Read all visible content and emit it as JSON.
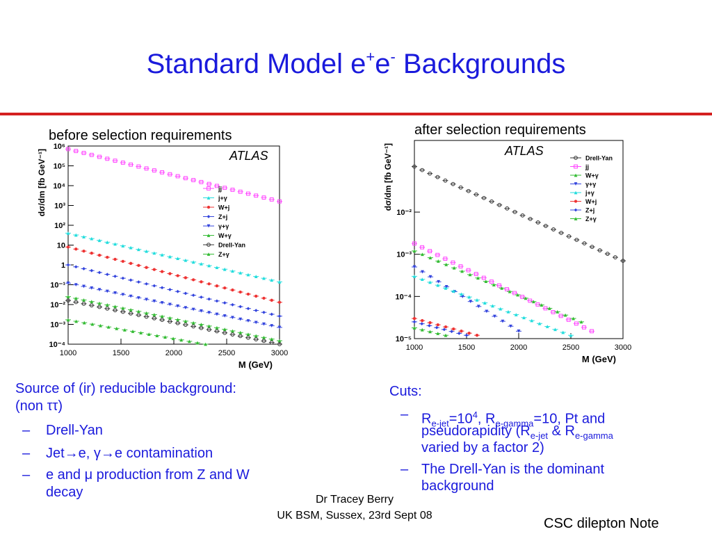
{
  "slide": {
    "title_pre": "Standard Model e",
    "title_sup1": "+",
    "title_mid": "e",
    "title_sup2": "-",
    "title_post": " Backgrounds"
  },
  "left_panel": {
    "caption": "before selection requirements",
    "atlas": "ATLAS"
  },
  "right_panel": {
    "caption": "after selection requirements",
    "atlas": "ATLAS"
  },
  "left_text": {
    "heading_line1": "Source of (ir) reducible background:",
    "heading_line2": "(non ττ)",
    "bullets": [
      "Drell-Yan",
      "Jet→e, γ→e contamination",
      "e and μ production from Z and W",
      "decay"
    ]
  },
  "right_text": {
    "heading": "Cuts:",
    "b1_r": "R",
    "b1_sub1": "e-jet",
    "b1_eq1": "=10",
    "b1_sup": "4",
    "b1_mid": ", R",
    "b1_sub2": "e-gamma",
    "b1_rest": "=10, Pt and",
    "b1_line2a": "pseudorapidity (R",
    "b1_sub3": "e-jet",
    "b1_line2b": " & R",
    "b1_sub4": "e-gamma",
    "b1_line3": "varied by a factor 2)",
    "b2_line1": "The Drell-Yan is the dominant",
    "b2_line2": "background"
  },
  "footer": {
    "line1": "Dr Tracey Berry",
    "line2": "UK BSM, Sussex, 23rd Sept 08"
  },
  "note": "CSC dilepton Note",
  "colors": {
    "jj": "#ff44ff",
    "jgamma": "#22dddd",
    "wj": "#ee3333",
    "zj": "#3344dd",
    "gammagamma": "#3344dd",
    "wgamma": "#33bb33",
    "dy": "#333333",
    "zgamma": "#33bb33"
  },
  "chart_data": [
    {
      "type": "scatter",
      "xlabel": "M (GeV)",
      "ylabel": "dσ/dm [fb GeV⁻¹]",
      "xlim": [
        1000,
        3000
      ],
      "ylim": [
        0.0001,
        1000000
      ],
      "log_y": true,
      "xticks": [
        1000,
        1500,
        2000,
        2500,
        3000
      ],
      "yticks": [
        "10⁻⁴",
        "10⁻³",
        "10⁻²",
        "10⁻¹",
        "1",
        "10",
        "10²",
        "10³",
        "10⁴",
        "10⁵",
        "10⁶"
      ],
      "legend_position": "top-right",
      "series": [
        {
          "name": "jj",
          "color": "#ff44ff",
          "marker": "square",
          "x": [
            1000,
            3000
          ],
          "y": [
            700000,
            1600
          ]
        },
        {
          "name": "j+γ",
          "color": "#22dddd",
          "marker": "triangle",
          "x": [
            1000,
            3000
          ],
          "y": [
            40,
            0.14
          ]
        },
        {
          "name": "W+j",
          "color": "#ee3333",
          "marker": "star",
          "x": [
            1000,
            3000
          ],
          "y": [
            8,
            0.013
          ]
        },
        {
          "name": "Z+j",
          "color": "#3344dd",
          "marker": "diamond",
          "x": [
            1000,
            3000
          ],
          "y": [
            1.0,
            0.0026
          ]
        },
        {
          "name": "γ+γ",
          "color": "#3344dd",
          "marker": "triangle-down",
          "x": [
            1000,
            3000
          ],
          "y": [
            0.12,
            0.0007
          ]
        },
        {
          "name": "W+γ",
          "color": "#33bb33",
          "marker": "triangle",
          "x": [
            1000,
            3000
          ],
          "y": [
            0.025,
            0.00015
          ]
        },
        {
          "name": "Drell-Yan",
          "color": "#333333",
          "marker": "circle",
          "x": [
            1000,
            3000
          ],
          "y": [
            0.016,
            0.0001
          ]
        },
        {
          "name": "Z+γ",
          "color": "#33bb33",
          "marker": "triangle",
          "x": [
            1000,
            2300
          ],
          "y": [
            0.0017,
            0.0001
          ]
        }
      ]
    },
    {
      "type": "scatter",
      "xlabel": "M (GeV)",
      "ylabel": "dσ/dm [fb GeV⁻¹]",
      "xlim": [
        1000,
        3000
      ],
      "ylim": [
        1e-06,
        0.05
      ],
      "log_y": true,
      "xticks": [
        1000,
        1500,
        2000,
        2500,
        3000
      ],
      "yticks": [
        "10⁻⁵",
        "10⁻⁴",
        "10⁻³",
        "10⁻²"
      ],
      "legend_position": "top-right",
      "series": [
        {
          "name": "Drell-Yan",
          "color": "#333333",
          "marker": "circle",
          "x": [
            1000,
            3000
          ],
          "y": [
            0.012,
            7e-05
          ]
        },
        {
          "name": "jj",
          "color": "#ff44ff",
          "marker": "square",
          "x": [
            1000,
            2700
          ],
          "y": [
            0.00018,
            1.5e-06
          ]
        },
        {
          "name": "W+γ",
          "color": "#33bb33",
          "marker": "triangle",
          "x": [
            1000,
            2600
          ],
          "y": [
            0.00012,
            2.5e-06
          ]
        },
        {
          "name": "γ+γ",
          "color": "#3344dd",
          "marker": "triangle-down",
          "x": [
            1000,
            2000
          ],
          "y": [
            5e-05,
            1.5e-06
          ]
        },
        {
          "name": "j+γ",
          "color": "#22dddd",
          "marker": "triangle",
          "x": [
            1000,
            2500
          ],
          "y": [
            3e-05,
            1.2e-06
          ]
        },
        {
          "name": "W+j",
          "color": "#ee3333",
          "marker": "star",
          "x": [
            1000,
            1600
          ],
          "y": [
            3e-06,
            1.2e-06
          ]
        },
        {
          "name": "Z+j",
          "color": "#3344dd",
          "marker": "diamond",
          "x": [
            1000,
            1500
          ],
          "y": [
            2.5e-06,
            1.2e-06
          ]
        },
        {
          "name": "Z+γ",
          "color": "#33bb33",
          "marker": "triangle",
          "x": [
            1000,
            1300
          ],
          "y": [
            1.8e-06,
            1.2e-06
          ]
        }
      ]
    }
  ]
}
